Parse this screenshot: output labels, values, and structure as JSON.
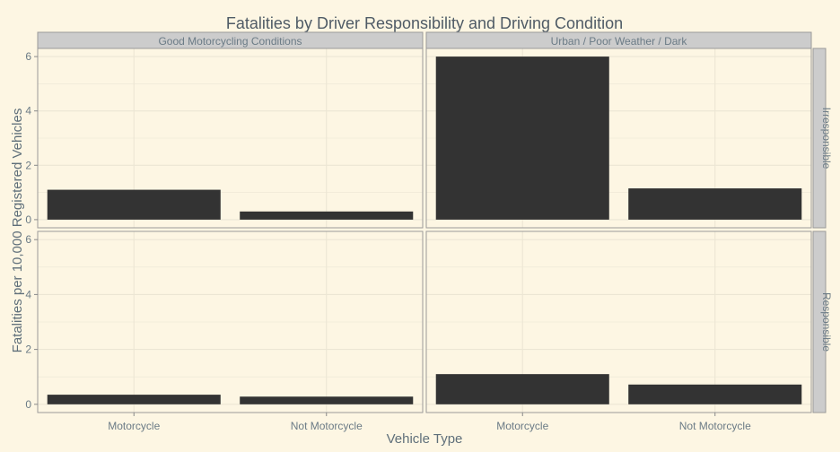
{
  "chart_data": {
    "type": "bar",
    "title": "Fatalities by Driver Responsibility and Driving Condition",
    "xlabel": "Vehicle Type",
    "ylabel": "Fatalities per 10,000 Registered Vehicles",
    "categories": [
      "Motorcycle",
      "Not Motorcycle"
    ],
    "col_facets": [
      "Good Motorcycling Conditions",
      "Urban / Poor Weather / Dark"
    ],
    "row_facets": [
      "Irresponsible",
      "Responsible"
    ],
    "yticks": [
      0,
      2,
      4,
      6
    ],
    "ylim": [
      -0.3,
      6.3
    ],
    "grid": true,
    "panels": [
      {
        "row": 0,
        "col": 0,
        "values": [
          1.1,
          0.3
        ]
      },
      {
        "row": 0,
        "col": 1,
        "values": [
          6.0,
          1.15
        ]
      },
      {
        "row": 1,
        "col": 0,
        "values": [
          0.35,
          0.28
        ]
      },
      {
        "row": 1,
        "col": 1,
        "values": [
          1.1,
          0.72
        ]
      }
    ],
    "colors": {
      "background": "#fdf6e3",
      "bar": "#333333",
      "strip": "#cccccc",
      "grid": "#ece6d4",
      "border": "#9a9a9a"
    }
  }
}
